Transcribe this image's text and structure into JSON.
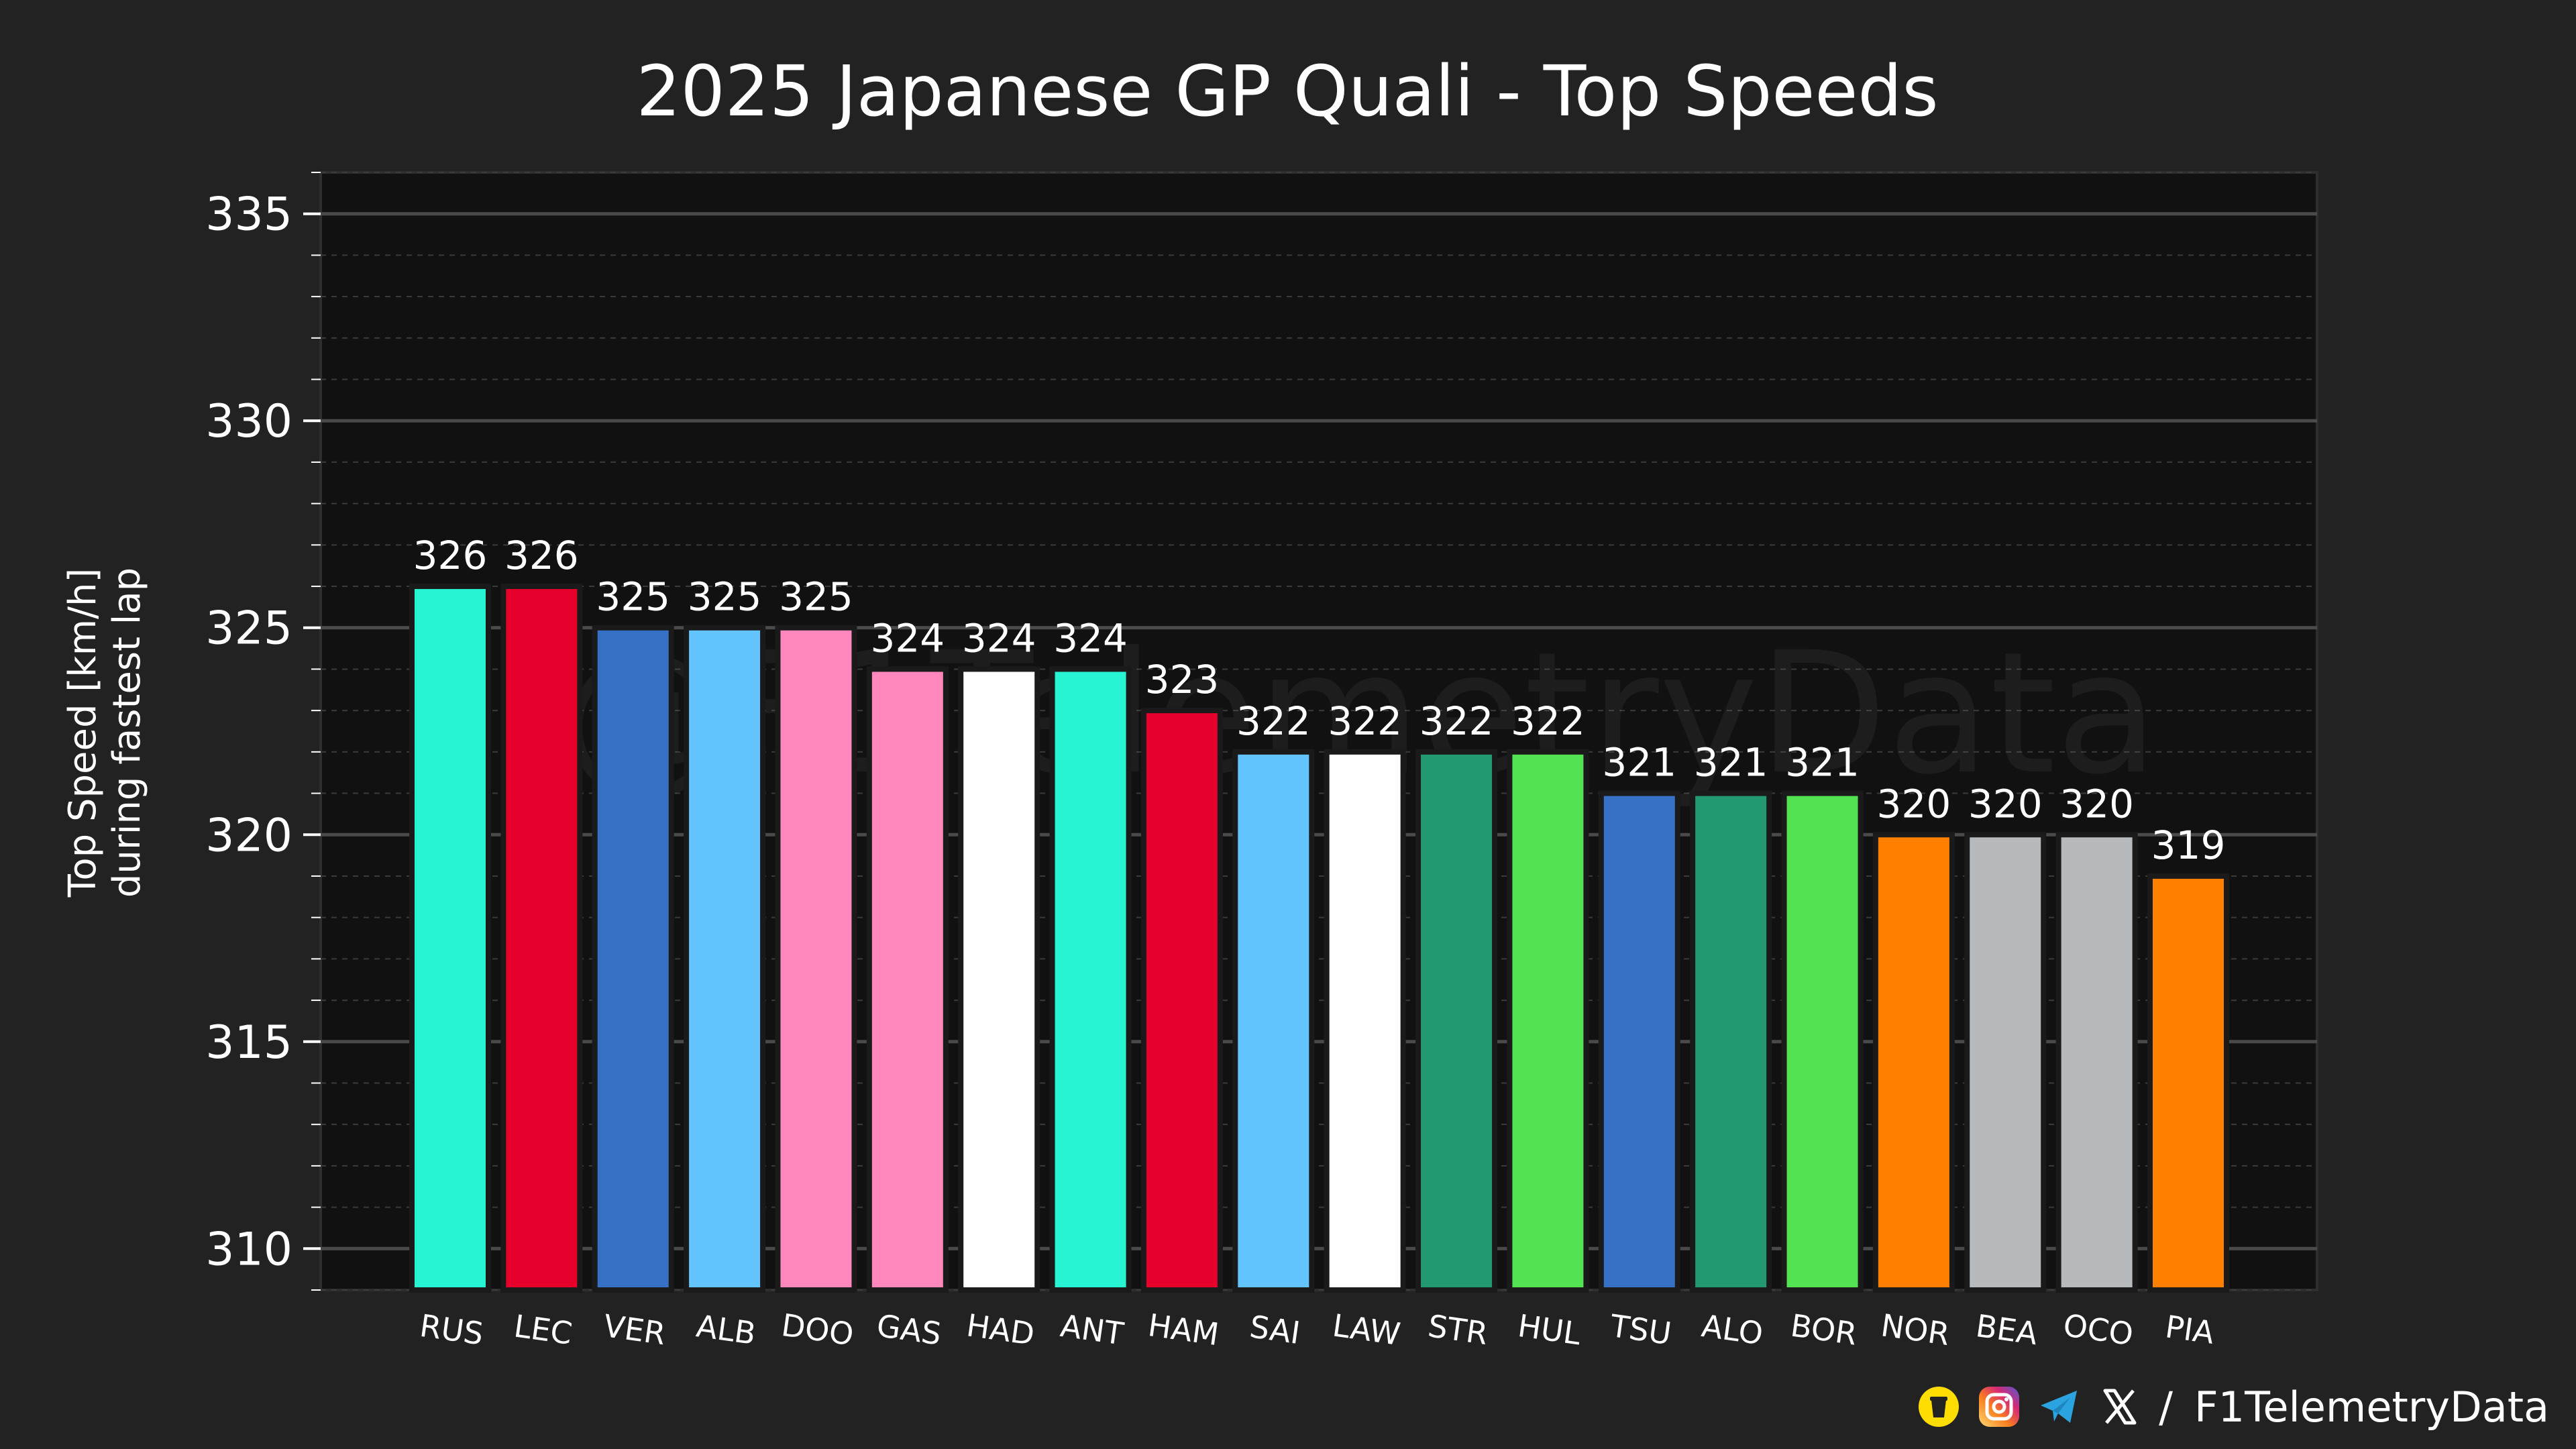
{
  "chart_data": {
    "type": "bar",
    "title": "2025 Japanese GP Quali - Top Speeds",
    "ylabel_line1": "Top Speed [km/h]",
    "ylabel_line2": "during fastest lap",
    "xlabel": "",
    "ylim": [
      309,
      336
    ],
    "yticks": [
      310,
      315,
      320,
      325,
      330,
      335
    ],
    "categories": [
      "RUS",
      "LEC",
      "VER",
      "ALB",
      "DOO",
      "GAS",
      "HAD",
      "ANT",
      "HAM",
      "SAI",
      "LAW",
      "STR",
      "HUL",
      "TSU",
      "ALO",
      "BOR",
      "NOR",
      "BEA",
      "OCO",
      "PIA"
    ],
    "values": [
      326,
      326,
      325,
      325,
      325,
      324,
      324,
      324,
      323,
      322,
      322,
      322,
      322,
      321,
      321,
      321,
      320,
      320,
      320,
      319
    ],
    "colors": [
      "#27F4D2",
      "#E8002D",
      "#3671C6",
      "#64C4FF",
      "#FF87BC",
      "#FF87BC",
      "#FFFFFF",
      "#27F4D2",
      "#E8002D",
      "#64C4FF",
      "#FFFFFF",
      "#229971",
      "#52E252",
      "#3671C6",
      "#229971",
      "#52E252",
      "#FF8000",
      "#B6BABD",
      "#B6BABD",
      "#FF8000"
    ],
    "watermark": "@F1TelemetryData",
    "grid": true
  },
  "footer": {
    "handle": "F1TelemetryData",
    "separator": "/",
    "icons": [
      "coffee-icon",
      "instagram-icon",
      "telegram-icon",
      "x-icon"
    ]
  }
}
